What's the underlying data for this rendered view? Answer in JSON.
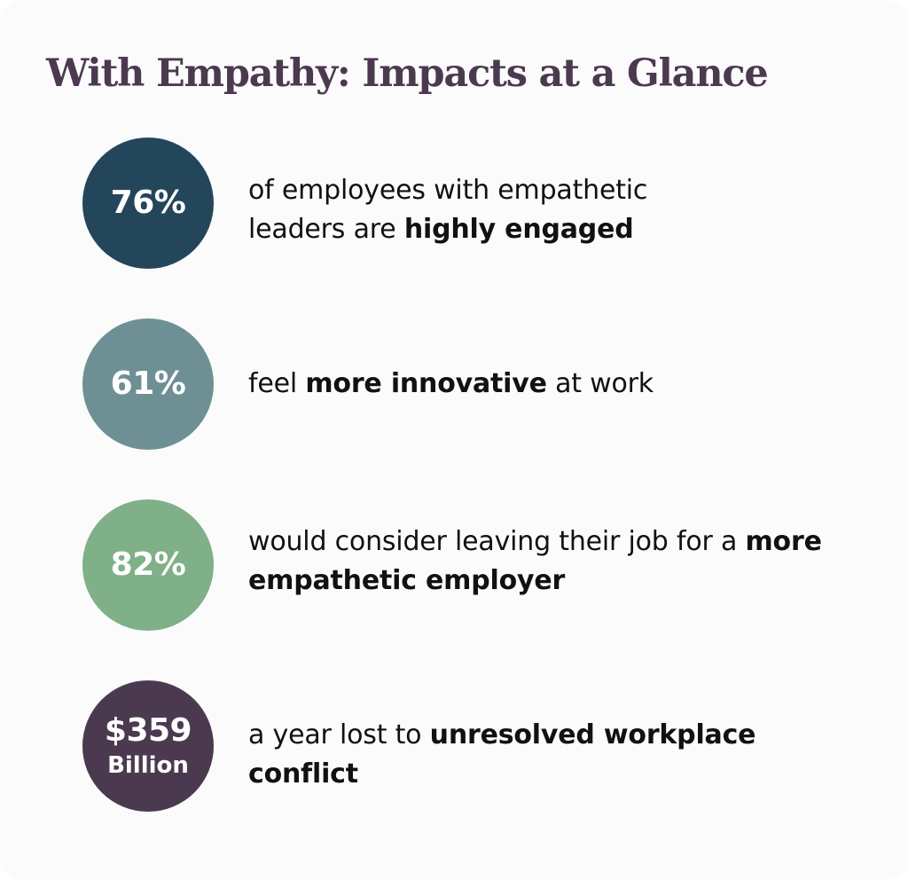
{
  "title": "With Empathy: Impacts at a Glance",
  "colors": {
    "title": "#4b3a4f",
    "navy": "#24465a",
    "slate": "#6e9095",
    "sage": "#7fb087",
    "plum": "#4b3a4f",
    "text": "#111111",
    "background": "#fbfbfb"
  },
  "stats": [
    {
      "value": "76%",
      "color": "#24465a",
      "text_before": "of employees with empathetic leaders are ",
      "text_bold": "highly engaged",
      "text_after": ""
    },
    {
      "value": "61%",
      "color": "#6e9095",
      "text_before": "feel ",
      "text_bold": "more innovative",
      "text_after": " at work"
    },
    {
      "value": "82%",
      "color": "#7fb087",
      "text_before": "would consider leaving their job for a ",
      "text_bold": "more empathetic employer",
      "text_after": ""
    },
    {
      "value": "$359",
      "sub": "Billion",
      "color": "#4b3a4f",
      "text_before": "a year lost to ",
      "text_bold": "unresolved workplace conflict",
      "text_after": ""
    }
  ]
}
